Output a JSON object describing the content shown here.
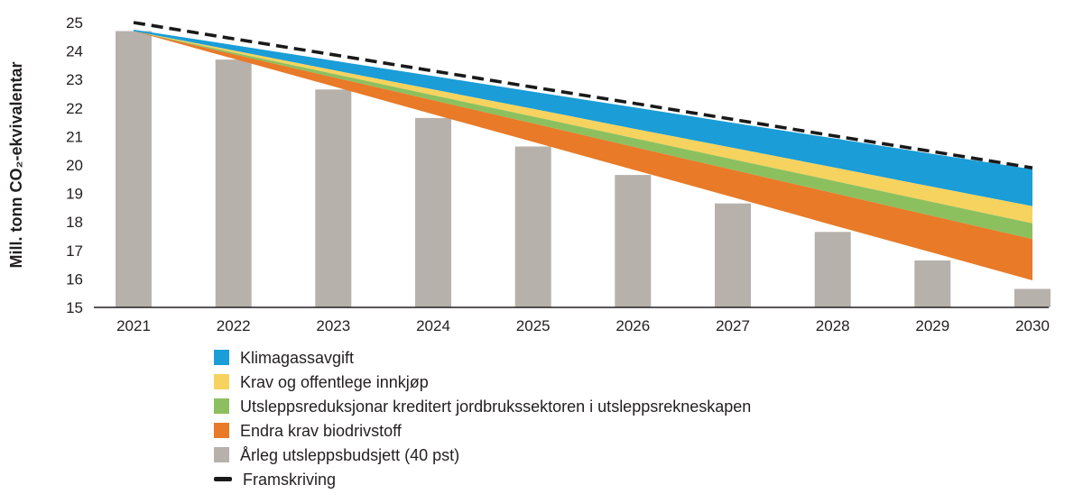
{
  "chart_data": {
    "type": "combo-bar-stacked-area-line",
    "title": "",
    "ylabel": "Mill. tonn CO₂-ekvivalentar",
    "xlabel": "",
    "ylim": [
      15,
      25
    ],
    "grid": false,
    "categories": [
      "2021",
      "2022",
      "2023",
      "2024",
      "2025",
      "2026",
      "2027",
      "2028",
      "2029",
      "2030"
    ],
    "bars": {
      "name": "Årleg utsleppsbudsjett (40 pst)",
      "color": "#b7b1ac",
      "values": [
        24.7,
        23.7,
        22.65,
        21.65,
        20.65,
        19.65,
        18.65,
        17.65,
        16.65,
        15.65
      ]
    },
    "line": {
      "name": "Framskriving",
      "color": "#1a1a1a",
      "style": "dashed",
      "values": [
        25.0,
        24.43,
        23.87,
        23.3,
        22.73,
        22.17,
        21.6,
        21.03,
        20.47,
        19.9
      ]
    },
    "bands": [
      {
        "name": "Klimagassavgift",
        "color": "#1b9dd7",
        "top": [
          24.75,
          24.21,
          23.66,
          23.12,
          22.57,
          22.03,
          21.48,
          20.94,
          20.39,
          19.85
        ],
        "bottom": [
          24.7,
          24.02,
          23.33,
          22.65,
          21.97,
          21.28,
          20.6,
          19.92,
          19.23,
          18.55
        ]
      },
      {
        "name": "Krav og offentlege innkjøp",
        "color": "#f6d35e",
        "top": [
          24.7,
          24.02,
          23.33,
          22.65,
          21.97,
          21.28,
          20.6,
          19.92,
          19.23,
          18.55
        ],
        "bottom": [
          24.7,
          23.95,
          23.2,
          22.45,
          21.7,
          20.95,
          20.2,
          19.45,
          18.7,
          17.95
        ]
      },
      {
        "name": "Utsleppsreduksjonar kreditert jordbrukssektoren i utsleppsrekneskapen",
        "color": "#8cc05f",
        "top": [
          24.7,
          23.95,
          23.2,
          22.45,
          21.7,
          20.95,
          20.2,
          19.45,
          18.7,
          17.95
        ],
        "bottom": [
          24.7,
          23.89,
          23.08,
          22.27,
          21.46,
          20.64,
          19.83,
          19.02,
          18.21,
          17.4
        ]
      },
      {
        "name": "Endra krav biodrivstoff",
        "color": "#e87a28",
        "top": [
          24.7,
          23.89,
          23.08,
          22.27,
          21.46,
          20.64,
          19.83,
          19.02,
          18.21,
          17.4
        ],
        "bottom": [
          24.7,
          23.73,
          22.76,
          21.78,
          20.81,
          19.84,
          18.87,
          17.89,
          16.92,
          15.95
        ]
      }
    ],
    "legend": {
      "position": "bottom-left",
      "items": [
        {
          "label": "Klimagassavgift",
          "swatch": "square",
          "color": "#1b9dd7"
        },
        {
          "label": "Krav og offentlege innkjøp",
          "swatch": "square",
          "color": "#f6d35e"
        },
        {
          "label": "Utsleppsreduksjonar kreditert jordbrukssektoren i utsleppsrekneskapen",
          "swatch": "square",
          "color": "#8cc05f"
        },
        {
          "label": "Endra krav biodrivstoff",
          "swatch": "square",
          "color": "#e87a28"
        },
        {
          "label": "Årleg utsleppsbudsjett (40 pst)",
          "swatch": "square",
          "color": "#b7b1ac"
        },
        {
          "label": "Framskriving",
          "swatch": "dash",
          "color": "#1a1a1a"
        }
      ]
    }
  }
}
